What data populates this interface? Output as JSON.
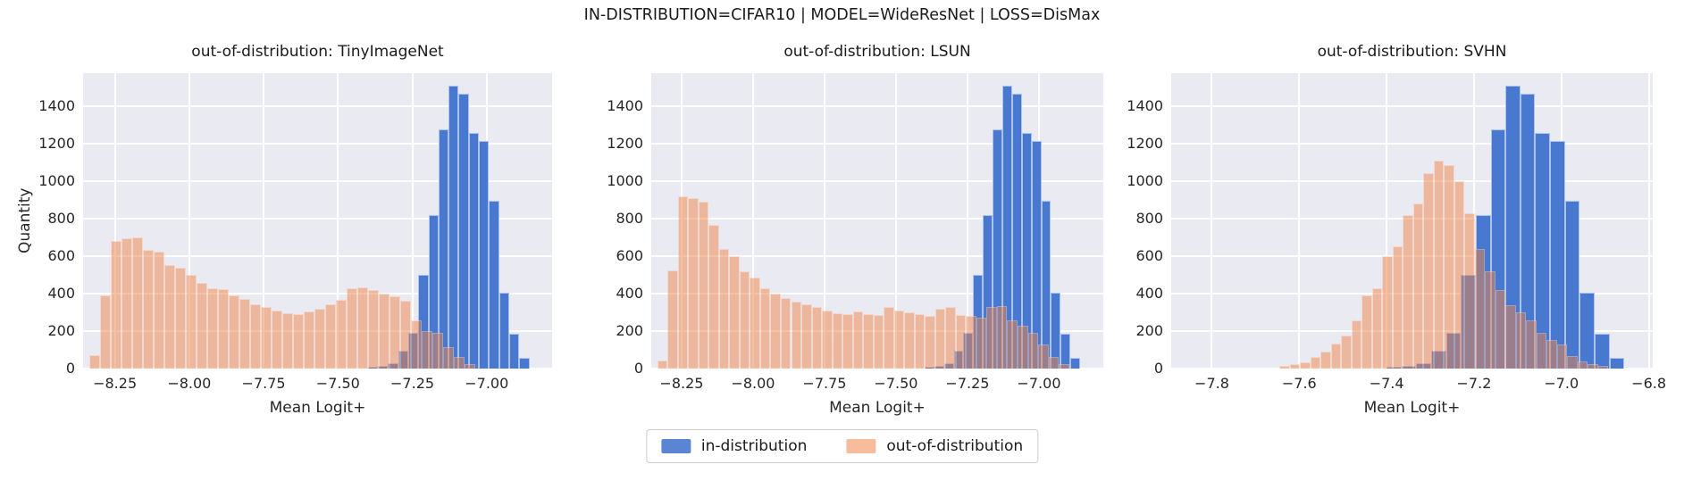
{
  "figure": {
    "title": "IN-DISTRIBUTION=CIFAR10 | MODEL=WideResNet | LOSS=DisMax",
    "background": "#ffffff",
    "plot_background": "#eaeaf2",
    "text_color": "#262626"
  },
  "legend": {
    "position": "lower center",
    "items": [
      {
        "label": "in-distribution",
        "color": "#4878d0",
        "swatch_opacity": 0.9
      },
      {
        "label": "out-of-distribution",
        "color": "#ee854a",
        "swatch_opacity": 0.55
      }
    ]
  },
  "chart_data": [
    {
      "type": "histogram",
      "title": "out-of-distribution: TinyImageNet",
      "xlabel": "Mean Logit+",
      "ylabel": "Quantity",
      "grid": true,
      "xlim": [
        -8.357,
        -6.78
      ],
      "ylim": [
        0,
        1575
      ],
      "xticks": [
        {
          "value": -8.25,
          "label": "−8.25"
        },
        {
          "value": -8.0,
          "label": "−8.00"
        },
        {
          "value": -7.75,
          "label": "−7.75"
        },
        {
          "value": -7.5,
          "label": "−7.50"
        },
        {
          "value": -7.25,
          "label": "−7.25"
        },
        {
          "value": -7.0,
          "label": "−7.00"
        }
      ],
      "yticks": [
        {
          "value": 0,
          "label": "0"
        },
        {
          "value": 200,
          "label": "200"
        },
        {
          "value": 400,
          "label": "400"
        },
        {
          "value": 600,
          "label": "600"
        },
        {
          "value": 800,
          "label": "800"
        },
        {
          "value": 1000,
          "label": "1000"
        },
        {
          "value": 1200,
          "label": "1200"
        },
        {
          "value": 1400,
          "label": "1400"
        }
      ],
      "series": [
        {
          "name": "in-distribution",
          "color": "#4878d0",
          "opacity": 1,
          "bin_start": -7.4,
          "bin_width": 0.034,
          "counts": [
            10,
            15,
            30,
            95,
            190,
            500,
            820,
            1275,
            1510,
            1465,
            1255,
            1215,
            895,
            405,
            185,
            55
          ]
        },
        {
          "name": "out-of-distribution",
          "color": "#ee854a",
          "opacity": 0.5,
          "bin_start": -8.335,
          "bin_width": 0.036,
          "counts": [
            70,
            390,
            680,
            695,
            700,
            635,
            625,
            550,
            540,
            500,
            455,
            430,
            425,
            390,
            370,
            345,
            330,
            310,
            295,
            290,
            305,
            320,
            345,
            365,
            430,
            435,
            420,
            400,
            385,
            360,
            255,
            200,
            190,
            115,
            60,
            25
          ]
        }
      ]
    },
    {
      "type": "histogram",
      "title": "out-of-distribution: LSUN",
      "xlabel": "Mean Logit+",
      "ylabel": null,
      "grid": true,
      "xlim": [
        -8.356,
        -6.775
      ],
      "ylim": [
        0,
        1575
      ],
      "xticks": [
        {
          "value": -8.25,
          "label": "−8.25"
        },
        {
          "value": -8.0,
          "label": "−8.00"
        },
        {
          "value": -7.75,
          "label": "−7.75"
        },
        {
          "value": -7.5,
          "label": "−7.50"
        },
        {
          "value": -7.25,
          "label": "−7.25"
        },
        {
          "value": -7.0,
          "label": "−7.00"
        }
      ],
      "yticks": [
        {
          "value": 0,
          "label": "0"
        },
        {
          "value": 200,
          "label": "200"
        },
        {
          "value": 400,
          "label": "400"
        },
        {
          "value": 600,
          "label": "600"
        },
        {
          "value": 800,
          "label": "800"
        },
        {
          "value": 1000,
          "label": "1000"
        },
        {
          "value": 1200,
          "label": "1200"
        },
        {
          "value": 1400,
          "label": "1400"
        }
      ],
      "series": [
        {
          "name": "in-distribution",
          "color": "#4878d0",
          "opacity": 1,
          "bin_start": -7.4,
          "bin_width": 0.034,
          "counts": [
            10,
            15,
            30,
            95,
            190,
            500,
            820,
            1275,
            1510,
            1465,
            1255,
            1215,
            895,
            405,
            185,
            55
          ]
        },
        {
          "name": "out-of-distribution",
          "color": "#ee854a",
          "opacity": 0.5,
          "bin_start": -8.335,
          "bin_width": 0.036,
          "counts": [
            45,
            525,
            920,
            910,
            890,
            765,
            640,
            600,
            520,
            485,
            430,
            400,
            375,
            355,
            345,
            330,
            310,
            295,
            290,
            305,
            290,
            285,
            330,
            310,
            300,
            290,
            280,
            320,
            330,
            285,
            280,
            270,
            330,
            335,
            255,
            230,
            190,
            130,
            60,
            25
          ]
        }
      ]
    },
    {
      "type": "histogram",
      "title": "out-of-distribution: SVHN",
      "xlabel": "Mean Logit+",
      "ylabel": null,
      "grid": true,
      "xlim": [
        -7.893,
        -6.791
      ],
      "ylim": [
        0,
        1575
      ],
      "xticks": [
        {
          "value": -7.8,
          "label": "−7.8"
        },
        {
          "value": -7.6,
          "label": "−7.6"
        },
        {
          "value": -7.4,
          "label": "−7.4"
        },
        {
          "value": -7.2,
          "label": "−7.2"
        },
        {
          "value": -7.0,
          "label": "−7.0"
        },
        {
          "value": -6.8,
          "label": "−6.8"
        }
      ],
      "yticks": [
        {
          "value": 0,
          "label": "0"
        },
        {
          "value": 200,
          "label": "200"
        },
        {
          "value": 400,
          "label": "400"
        },
        {
          "value": 600,
          "label": "600"
        },
        {
          "value": 800,
          "label": "800"
        },
        {
          "value": 1000,
          "label": "1000"
        },
        {
          "value": 1200,
          "label": "1200"
        },
        {
          "value": 1400,
          "label": "1400"
        }
      ],
      "series": [
        {
          "name": "in-distribution",
          "color": "#4878d0",
          "opacity": 1,
          "bin_start": -7.4,
          "bin_width": 0.034,
          "counts": [
            10,
            15,
            30,
            95,
            190,
            500,
            820,
            1275,
            1510,
            1465,
            1255,
            1215,
            895,
            405,
            185,
            55
          ]
        },
        {
          "name": "out-of-distribution",
          "color": "#ee854a",
          "opacity": 0.5,
          "bin_start": -7.645,
          "bin_width": 0.0235,
          "counts": [
            15,
            25,
            35,
            60,
            90,
            135,
            175,
            255,
            390,
            430,
            600,
            650,
            820,
            880,
            1040,
            1110,
            1085,
            1000,
            830,
            640,
            520,
            420,
            340,
            300,
            255,
            190,
            150,
            130,
            65,
            40,
            25,
            15
          ]
        }
      ]
    }
  ]
}
